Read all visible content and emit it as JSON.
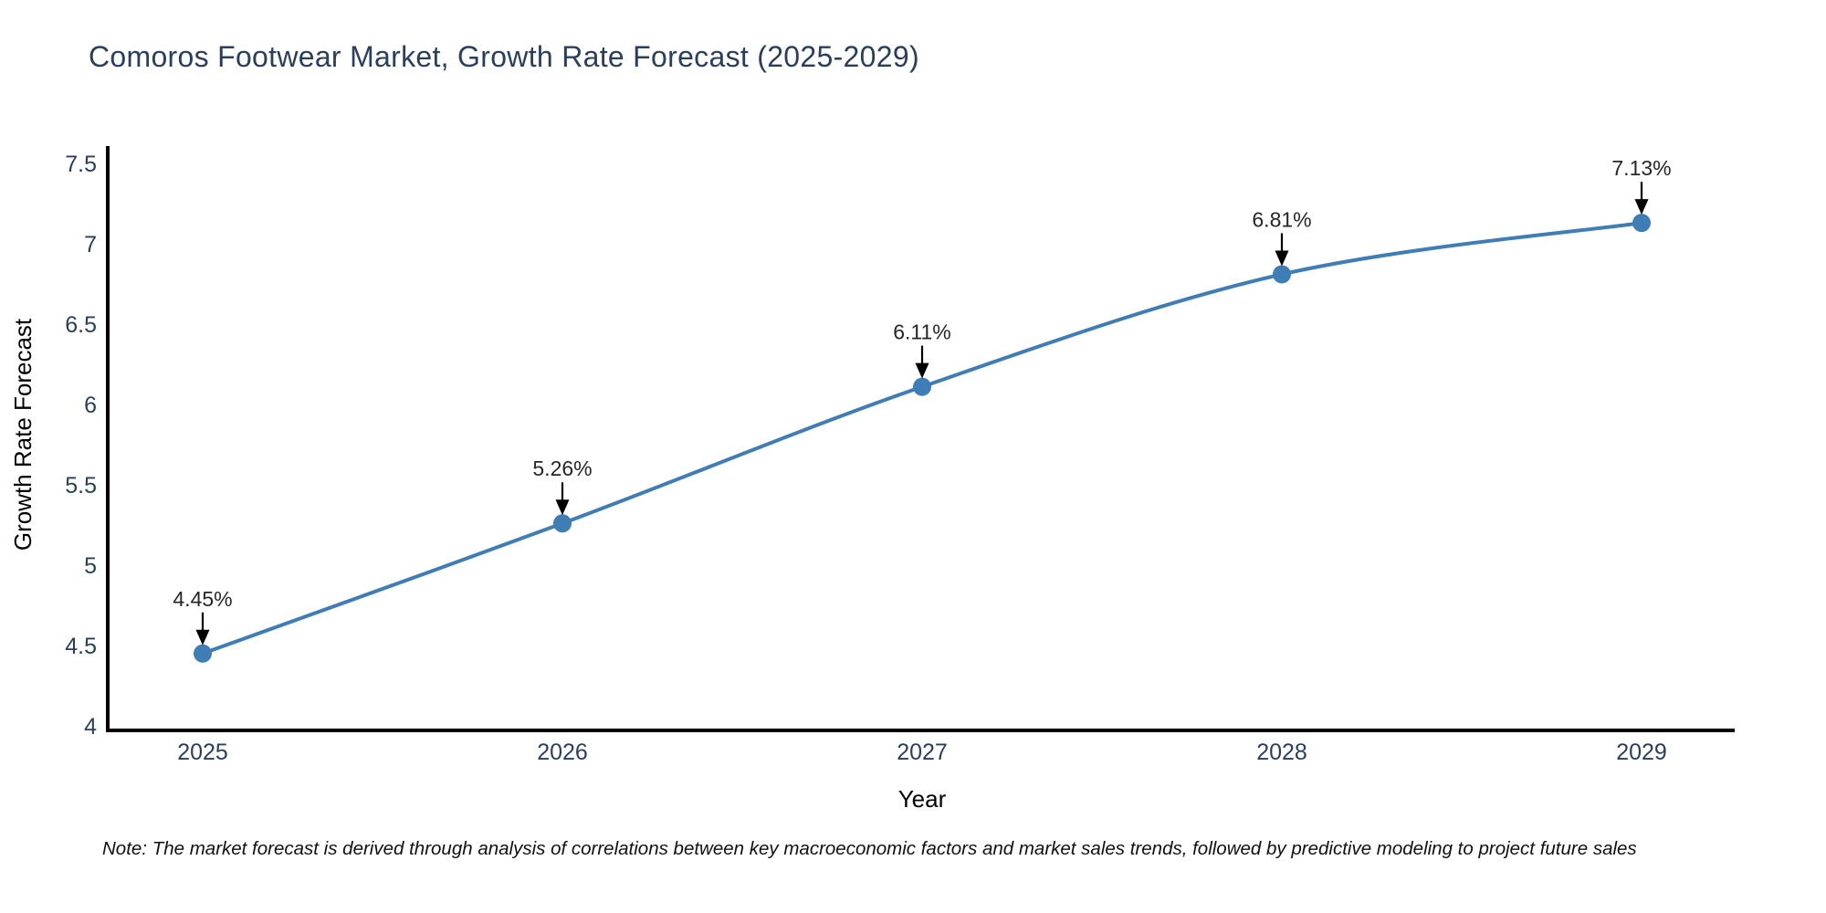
{
  "page": {
    "note": "Note: The market forecast is derived through analysis of correlations between key macroeconomic factors and market sales trends, followed by predictive modeling to project future sales"
  },
  "chart_data": {
    "type": "line",
    "title": "Comoros Footwear Market, Growth Rate Forecast (2025-2029)",
    "xlabel": "Year",
    "ylabel": "Growth Rate Forecast",
    "categories": [
      "2025",
      "2026",
      "2027",
      "2028",
      "2029"
    ],
    "values": [
      4.45,
      5.26,
      6.11,
      6.81,
      7.13
    ],
    "point_labels": [
      "4.45%",
      "5.26%",
      "6.11%",
      "6.81%",
      "7.13%"
    ],
    "ytick_values": [
      4,
      4.5,
      5,
      5.5,
      6,
      6.5,
      7,
      7.5
    ],
    "ytick_labels": [
      "4",
      "4.5",
      "5",
      "5.5",
      "6",
      "6.5",
      "7",
      "7.5"
    ],
    "ylim": [
      3.97,
      7.61
    ],
    "grid": false,
    "legend_position": "none",
    "marker_style": "circle",
    "line_shape": "spline",
    "colors": {
      "line": "#3e7db5",
      "marker": "#3e7db5",
      "axis": "#000000",
      "text": "#2a3f5f",
      "annotation_text": "#262626",
      "arrow": "#000000",
      "background": "#ffffff"
    }
  }
}
